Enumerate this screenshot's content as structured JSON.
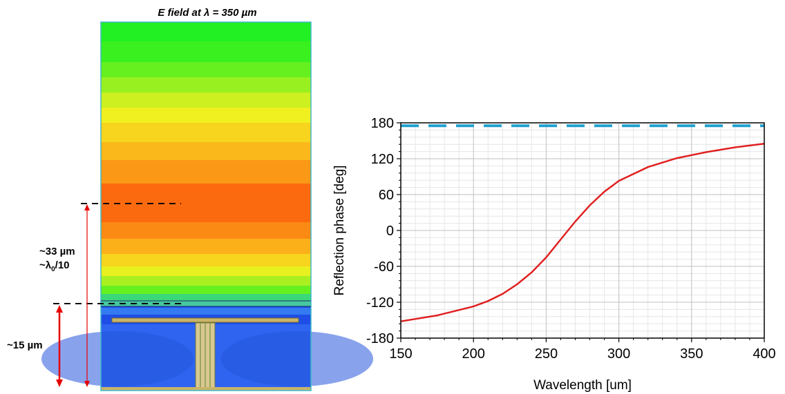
{
  "field_panel": {
    "title": "E field at λ = 350 µm",
    "annotation_33": "~33 µm",
    "annotation_lambda_main": "~λ",
    "annotation_lambda_sub": "0",
    "annotation_lambda_tail": "/10",
    "annotation_15": "~15 µm",
    "colors": {
      "arrow": "#e60000",
      "substrate": "#2e64f0",
      "frame": "#3fb8c8"
    }
  },
  "chart_data": {
    "type": "line",
    "title": "",
    "xlabel": "Wavelength [um]",
    "ylabel": "Reflection phase [deg]",
    "xlim": [
      150,
      400
    ],
    "ylim": [
      -180,
      180
    ],
    "xticks": [
      150,
      200,
      250,
      300,
      350,
      400
    ],
    "yticks": [
      -180,
      -120,
      -60,
      0,
      60,
      120,
      180
    ],
    "grid": true,
    "series": [
      {
        "color": "#e02020",
        "style": "solid",
        "x": [
          150,
          175,
          200,
          210,
          220,
          230,
          240,
          250,
          260,
          270,
          280,
          290,
          300,
          320,
          340,
          360,
          380,
          400
        ],
        "y": [
          -152,
          -142,
          -127,
          -118,
          -106,
          -90,
          -70,
          -45,
          -15,
          15,
          42,
          65,
          83,
          106,
          121,
          131,
          139,
          145
        ]
      },
      {
        "color": "#1ea0d0",
        "style": "dashed",
        "x": [
          150,
          400
        ],
        "y": [
          175,
          175
        ]
      }
    ]
  }
}
